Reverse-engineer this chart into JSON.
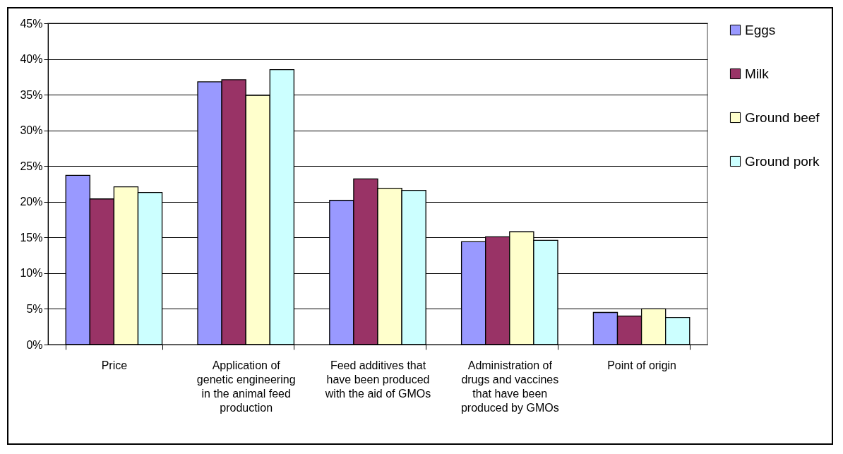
{
  "chart_data": {
    "type": "bar",
    "categories": [
      "Price",
      "Application of genetic engineering in the animal feed production",
      "Feed additives that have been produced with the aid of GMOs",
      "Administration of drugs and vaccines that have been produced by GMOs",
      "Point of origin"
    ],
    "series": [
      {
        "name": "Eggs",
        "color": "#9999ff",
        "values": [
          23.7,
          36.8,
          20.2,
          14.4,
          4.5
        ]
      },
      {
        "name": "Milk",
        "color": "#993366",
        "values": [
          20.4,
          37.1,
          23.2,
          15.1,
          4.0
        ]
      },
      {
        "name": "Ground beef",
        "color": "#ffffcc",
        "values": [
          22.1,
          34.9,
          21.9,
          15.8,
          5.0
        ]
      },
      {
        "name": "Ground pork",
        "color": "#ccffff",
        "values": [
          21.3,
          38.5,
          21.6,
          14.6,
          3.8
        ]
      }
    ],
    "ylim": [
      0,
      45
    ],
    "yticks": [
      {
        "value": 0,
        "label": "0%"
      },
      {
        "value": 5,
        "label": "5%"
      },
      {
        "value": 10,
        "label": "10%"
      },
      {
        "value": 15,
        "label": "15%"
      },
      {
        "value": 20,
        "label": "20%"
      },
      {
        "value": 25,
        "label": "25%"
      },
      {
        "value": 30,
        "label": "30%"
      },
      {
        "value": 35,
        "label": "35%"
      },
      {
        "value": 40,
        "label": "40%"
      },
      {
        "value": 45,
        "label": "45%"
      }
    ],
    "grid": "y",
    "legend": "right"
  }
}
